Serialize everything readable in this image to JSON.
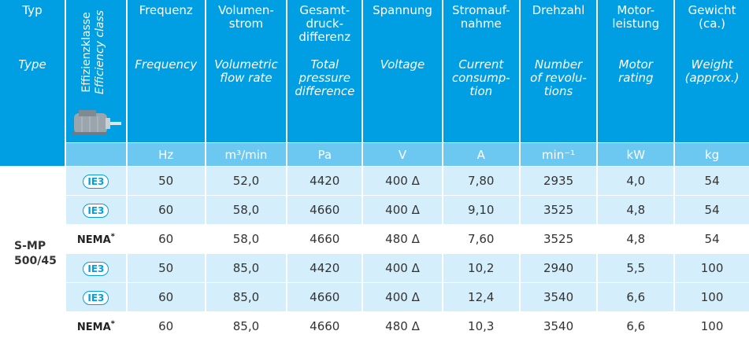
{
  "type_header": {
    "de": "Typ",
    "en": "Type"
  },
  "efficiency_header": {
    "de": "Effizienzklasse",
    "en": "Efficiency class"
  },
  "columns": [
    {
      "de": [
        "Frequenz"
      ],
      "en": [
        "Frequency"
      ],
      "unit": "Hz"
    },
    {
      "de": [
        "Volumen-",
        "strom"
      ],
      "en": [
        "Volumetric",
        "flow rate"
      ],
      "unit": "m³/min"
    },
    {
      "de": [
        "Gesamt-",
        "druck-",
        "differenz"
      ],
      "en": [
        "Total",
        "pressure",
        "difference"
      ],
      "unit": "Pa"
    },
    {
      "de": [
        "Spannung"
      ],
      "en": [
        "Voltage"
      ],
      "unit": "V"
    },
    {
      "de": [
        "Stromauf-",
        "nahme"
      ],
      "en": [
        "Current",
        "consump-",
        "tion"
      ],
      "unit": "A"
    },
    {
      "de": [
        "Drehzahl"
      ],
      "en": [
        "Number",
        "of revolu-",
        "tions"
      ],
      "unit": "min⁻¹"
    },
    {
      "de": [
        "Motor-",
        "leistung"
      ],
      "en": [
        "Motor",
        "rating"
      ],
      "unit": "kW"
    },
    {
      "de": [
        "Gewicht",
        "(ca.)"
      ],
      "en": [
        "Weight",
        "(approx.)"
      ],
      "unit": "kg"
    }
  ],
  "type_label": [
    "S-MP",
    "500/45"
  ],
  "rows": [
    {
      "efficiency": "IE3",
      "values": [
        "50",
        "52,0",
        "4420",
        "400 Δ",
        "7,80",
        "2935",
        "4,0",
        "54"
      ]
    },
    {
      "efficiency": "IE3",
      "values": [
        "60",
        "58,0",
        "4660",
        "400 Δ",
        "9,10",
        "3525",
        "4,8",
        "54"
      ]
    },
    {
      "efficiency": "NEMA",
      "note": "*",
      "values": [
        "60",
        "58,0",
        "4660",
        "480 Δ",
        "7,60",
        "3525",
        "4,8",
        "54"
      ]
    },
    {
      "efficiency": "IE3",
      "values": [
        "50",
        "85,0",
        "4420",
        "400 Δ",
        "10,2",
        "2940",
        "5,5",
        "100"
      ]
    },
    {
      "efficiency": "IE3",
      "values": [
        "60",
        "85,0",
        "4660",
        "400 Δ",
        "12,4",
        "3540",
        "6,6",
        "100"
      ]
    },
    {
      "efficiency": "NEMA",
      "note": "*",
      "values": [
        "60",
        "85,0",
        "4660",
        "480 Δ",
        "10,3",
        "3540",
        "6,6",
        "100"
      ]
    }
  ]
}
